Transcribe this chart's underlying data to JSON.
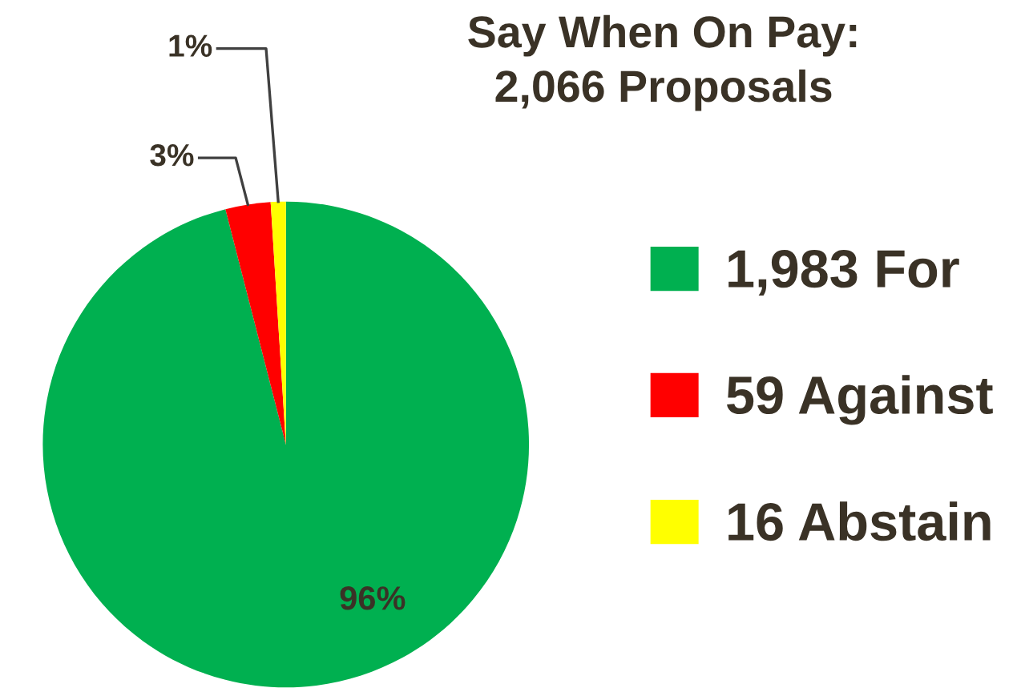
{
  "chart_data": {
    "type": "pie",
    "title": "Say When On Pay:\n2,066 Proposals",
    "categories": [
      "1,983 For",
      "59 Against",
      "16 Abstain"
    ],
    "values": [
      96,
      3,
      1
    ],
    "colors": [
      "#00b050",
      "#ff0000",
      "#ffff00"
    ],
    "value_labels": [
      "96%",
      "3%",
      "1%"
    ],
    "legend": "right"
  }
}
